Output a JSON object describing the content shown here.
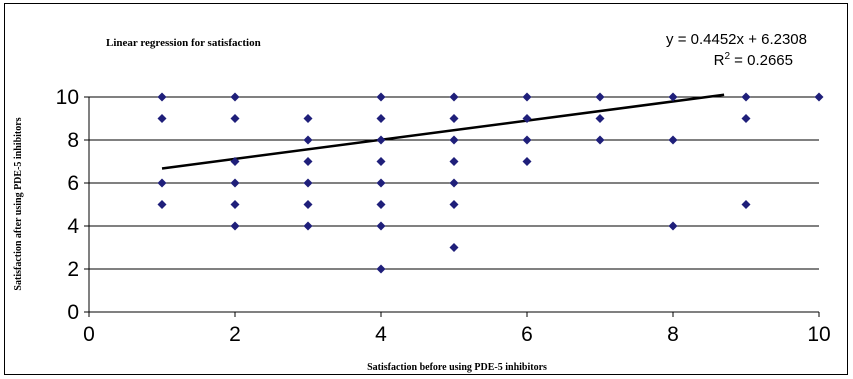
{
  "chart_data": {
    "type": "scatter",
    "title": "Linear regression for satisfaction",
    "xlabel": "Satisfaction before using PDE-5 inhibitors",
    "ylabel": "Satisfaction after using PDE-5 inhibitors",
    "xlim": [
      0,
      10
    ],
    "ylim": [
      0,
      10
    ],
    "xticks": [
      0,
      2,
      4,
      6,
      8,
      10
    ],
    "yticks": [
      0,
      2,
      4,
      6,
      8,
      10
    ],
    "grid": "horizontal",
    "marker_color": "#1f1f7a",
    "trendline_color": "#000000",
    "points": [
      {
        "x": 1,
        "y": 10
      },
      {
        "x": 1,
        "y": 9
      },
      {
        "x": 1,
        "y": 6
      },
      {
        "x": 1,
        "y": 5
      },
      {
        "x": 2,
        "y": 10
      },
      {
        "x": 2,
        "y": 9
      },
      {
        "x": 2,
        "y": 7
      },
      {
        "x": 2,
        "y": 6
      },
      {
        "x": 2,
        "y": 5
      },
      {
        "x": 2,
        "y": 4
      },
      {
        "x": 3,
        "y": 9
      },
      {
        "x": 3,
        "y": 8
      },
      {
        "x": 3,
        "y": 7
      },
      {
        "x": 3,
        "y": 6
      },
      {
        "x": 3,
        "y": 5
      },
      {
        "x": 3,
        "y": 4
      },
      {
        "x": 4,
        "y": 10
      },
      {
        "x": 4,
        "y": 9
      },
      {
        "x": 4,
        "y": 8
      },
      {
        "x": 4,
        "y": 7
      },
      {
        "x": 4,
        "y": 6
      },
      {
        "x": 4,
        "y": 5
      },
      {
        "x": 4,
        "y": 4
      },
      {
        "x": 4,
        "y": 2
      },
      {
        "x": 5,
        "y": 10
      },
      {
        "x": 5,
        "y": 9
      },
      {
        "x": 5,
        "y": 8
      },
      {
        "x": 5,
        "y": 7
      },
      {
        "x": 5,
        "y": 6
      },
      {
        "x": 5,
        "y": 5
      },
      {
        "x": 5,
        "y": 3
      },
      {
        "x": 6,
        "y": 10
      },
      {
        "x": 6,
        "y": 9
      },
      {
        "x": 6,
        "y": 8
      },
      {
        "x": 6,
        "y": 7
      },
      {
        "x": 7,
        "y": 10
      },
      {
        "x": 7,
        "y": 9
      },
      {
        "x": 7,
        "y": 8
      },
      {
        "x": 8,
        "y": 10
      },
      {
        "x": 8,
        "y": 8
      },
      {
        "x": 8,
        "y": 4
      },
      {
        "x": 9,
        "y": 10
      },
      {
        "x": 9,
        "y": 9
      },
      {
        "x": 9,
        "y": 5
      },
      {
        "x": 10,
        "y": 10
      }
    ],
    "trendline": {
      "slope": 0.4452,
      "intercept": 6.2308,
      "x_range": [
        1,
        8.7
      ],
      "equation": "y = 0.4452x + 6.2308",
      "r2_prefix": "R",
      "r2_sup": "2",
      "r2_value": " = 0.2665"
    }
  }
}
